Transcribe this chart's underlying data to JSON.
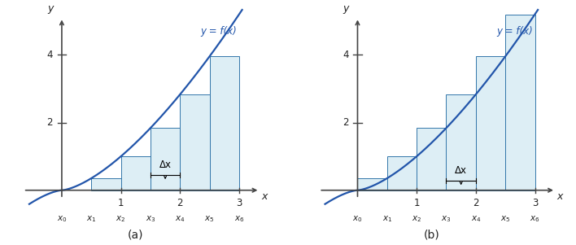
{
  "func_label": "y = f(x)",
  "xlabel": "x",
  "ylabel": "y",
  "x_start": 0.0,
  "x_end": 3.0,
  "n_intervals": 6,
  "curve_x_min": -0.55,
  "curve_x_max": 3.05,
  "x_axis_left": -0.65,
  "x_axis_right": 3.35,
  "y_axis_bottom": -0.25,
  "y_axis_top": 5.1,
  "ylim_bottom": -1.4,
  "ylim_top": 5.4,
  "xlim_left": -0.85,
  "xlim_right": 3.5,
  "curve_color": "#2255aa",
  "rect_face_color": "#ddeef5",
  "rect_edge_color": "#3377aa",
  "axis_color": "#444444",
  "label_color": "#222222",
  "func_color": "#2255aa",
  "delta_x_label": "Δx",
  "x_tick_positions": [
    1,
    2,
    3
  ],
  "x_tick_labels": [
    "1",
    "2",
    "3"
  ],
  "y_tick_positions": [
    2,
    4
  ],
  "y_tick_labels": [
    "2",
    "4"
  ],
  "xi_labels": [
    "x_0",
    "x_1",
    "x_2",
    "x_3",
    "x_4",
    "x_5",
    "x_6"
  ],
  "xi_positions": [
    0.0,
    0.5,
    1.0,
    1.5,
    2.0,
    2.5,
    3.0
  ],
  "subplot_labels": [
    "(a)",
    "(b)"
  ],
  "figsize": [
    7.08,
    3.01
  ],
  "dpi": 100
}
